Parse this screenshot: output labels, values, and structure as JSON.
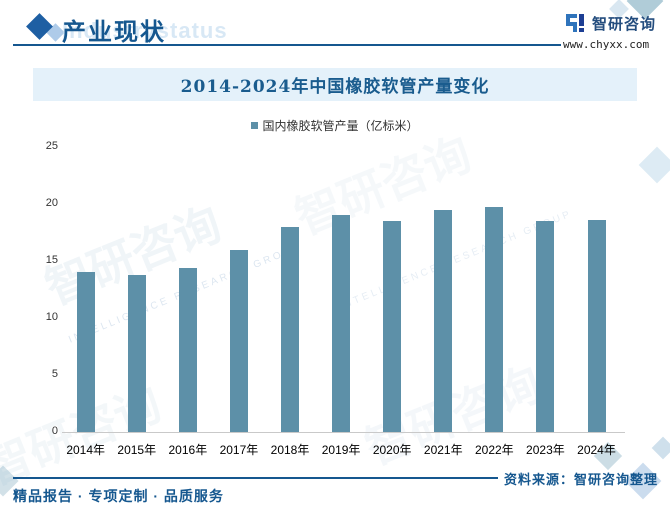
{
  "header": {
    "title": "产业现状",
    "watermark": "Industrystatus",
    "brand": {
      "name": "智研咨询",
      "url": "www.chyxx.com"
    }
  },
  "chart_data": {
    "type": "bar",
    "title": "2014-2024年中国橡胶软管产量变化",
    "legend": "国内橡胶软管产量（亿标米）",
    "categories": [
      "2014年",
      "2015年",
      "2016年",
      "2017年",
      "2018年",
      "2019年",
      "2020年",
      "2021年",
      "2022年",
      "2023年",
      "2024年"
    ],
    "values": [
      14.0,
      13.8,
      14.4,
      16.0,
      18.0,
      19.0,
      18.5,
      19.5,
      19.7,
      18.5,
      18.6
    ],
    "xlabel": "",
    "ylabel": "",
    "ylim": [
      0,
      25
    ],
    "yticks": [
      0,
      5,
      10,
      15,
      20,
      25
    ],
    "grid": false,
    "legend_position": "top-center",
    "bar_color": "#5D90A8"
  },
  "footer": {
    "slogan": "精品报告 · 专项定制 · 品质服务",
    "source": "资料来源：智研咨询整理"
  },
  "watermark_text": {
    "cn": "智研咨询",
    "en": "INTELLIGENCE RESEARCH GROUP"
  },
  "colors": {
    "accent": "#15578F",
    "title_band_bg": "#E4F1FA",
    "bar": "#5D90A8",
    "baseline": "#C9C9C9"
  }
}
